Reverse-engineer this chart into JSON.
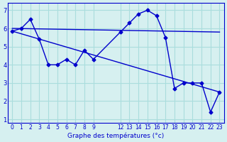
{
  "xlabel": "Graphe des températures (°c)",
  "bg_color": "#d6f0f0",
  "line_color": "#0000cc",
  "grid_color": "#aadddd",
  "x_ticks": [
    0,
    1,
    2,
    3,
    4,
    5,
    6,
    7,
    8,
    9,
    12,
    13,
    14,
    15,
    16,
    17,
    18,
    19,
    20,
    21,
    22,
    23
  ],
  "x_tick_labels": [
    "0",
    "1",
    "2",
    "3",
    "4",
    "5",
    "6",
    "7",
    "8",
    "9",
    "12",
    "13",
    "14",
    "15",
    "16",
    "17",
    "18",
    "19",
    "20",
    "21",
    "22",
    "23"
  ],
  "ylim": [
    0.8,
    7.4
  ],
  "xlim": [
    -0.5,
    23.5
  ],
  "yticks": [
    1,
    2,
    3,
    4,
    5,
    6,
    7
  ],
  "measured_x": [
    0,
    1,
    2,
    3,
    4,
    5,
    6,
    7,
    8,
    9,
    12,
    13,
    14,
    15,
    16,
    17,
    18,
    19,
    20,
    21,
    22,
    23
  ],
  "measured_y": [
    5.85,
    6.0,
    6.5,
    5.4,
    4.0,
    4.0,
    4.3,
    4.0,
    4.8,
    4.3,
    5.8,
    6.3,
    6.8,
    7.0,
    6.7,
    5.5,
    2.7,
    3.0,
    3.0,
    3.0,
    1.4,
    2.5
  ],
  "trend1_x": [
    0,
    23
  ],
  "trend1_y": [
    6.0,
    5.8
  ],
  "trend2_x": [
    0,
    23
  ],
  "trend2_y": [
    5.85,
    2.5
  ]
}
